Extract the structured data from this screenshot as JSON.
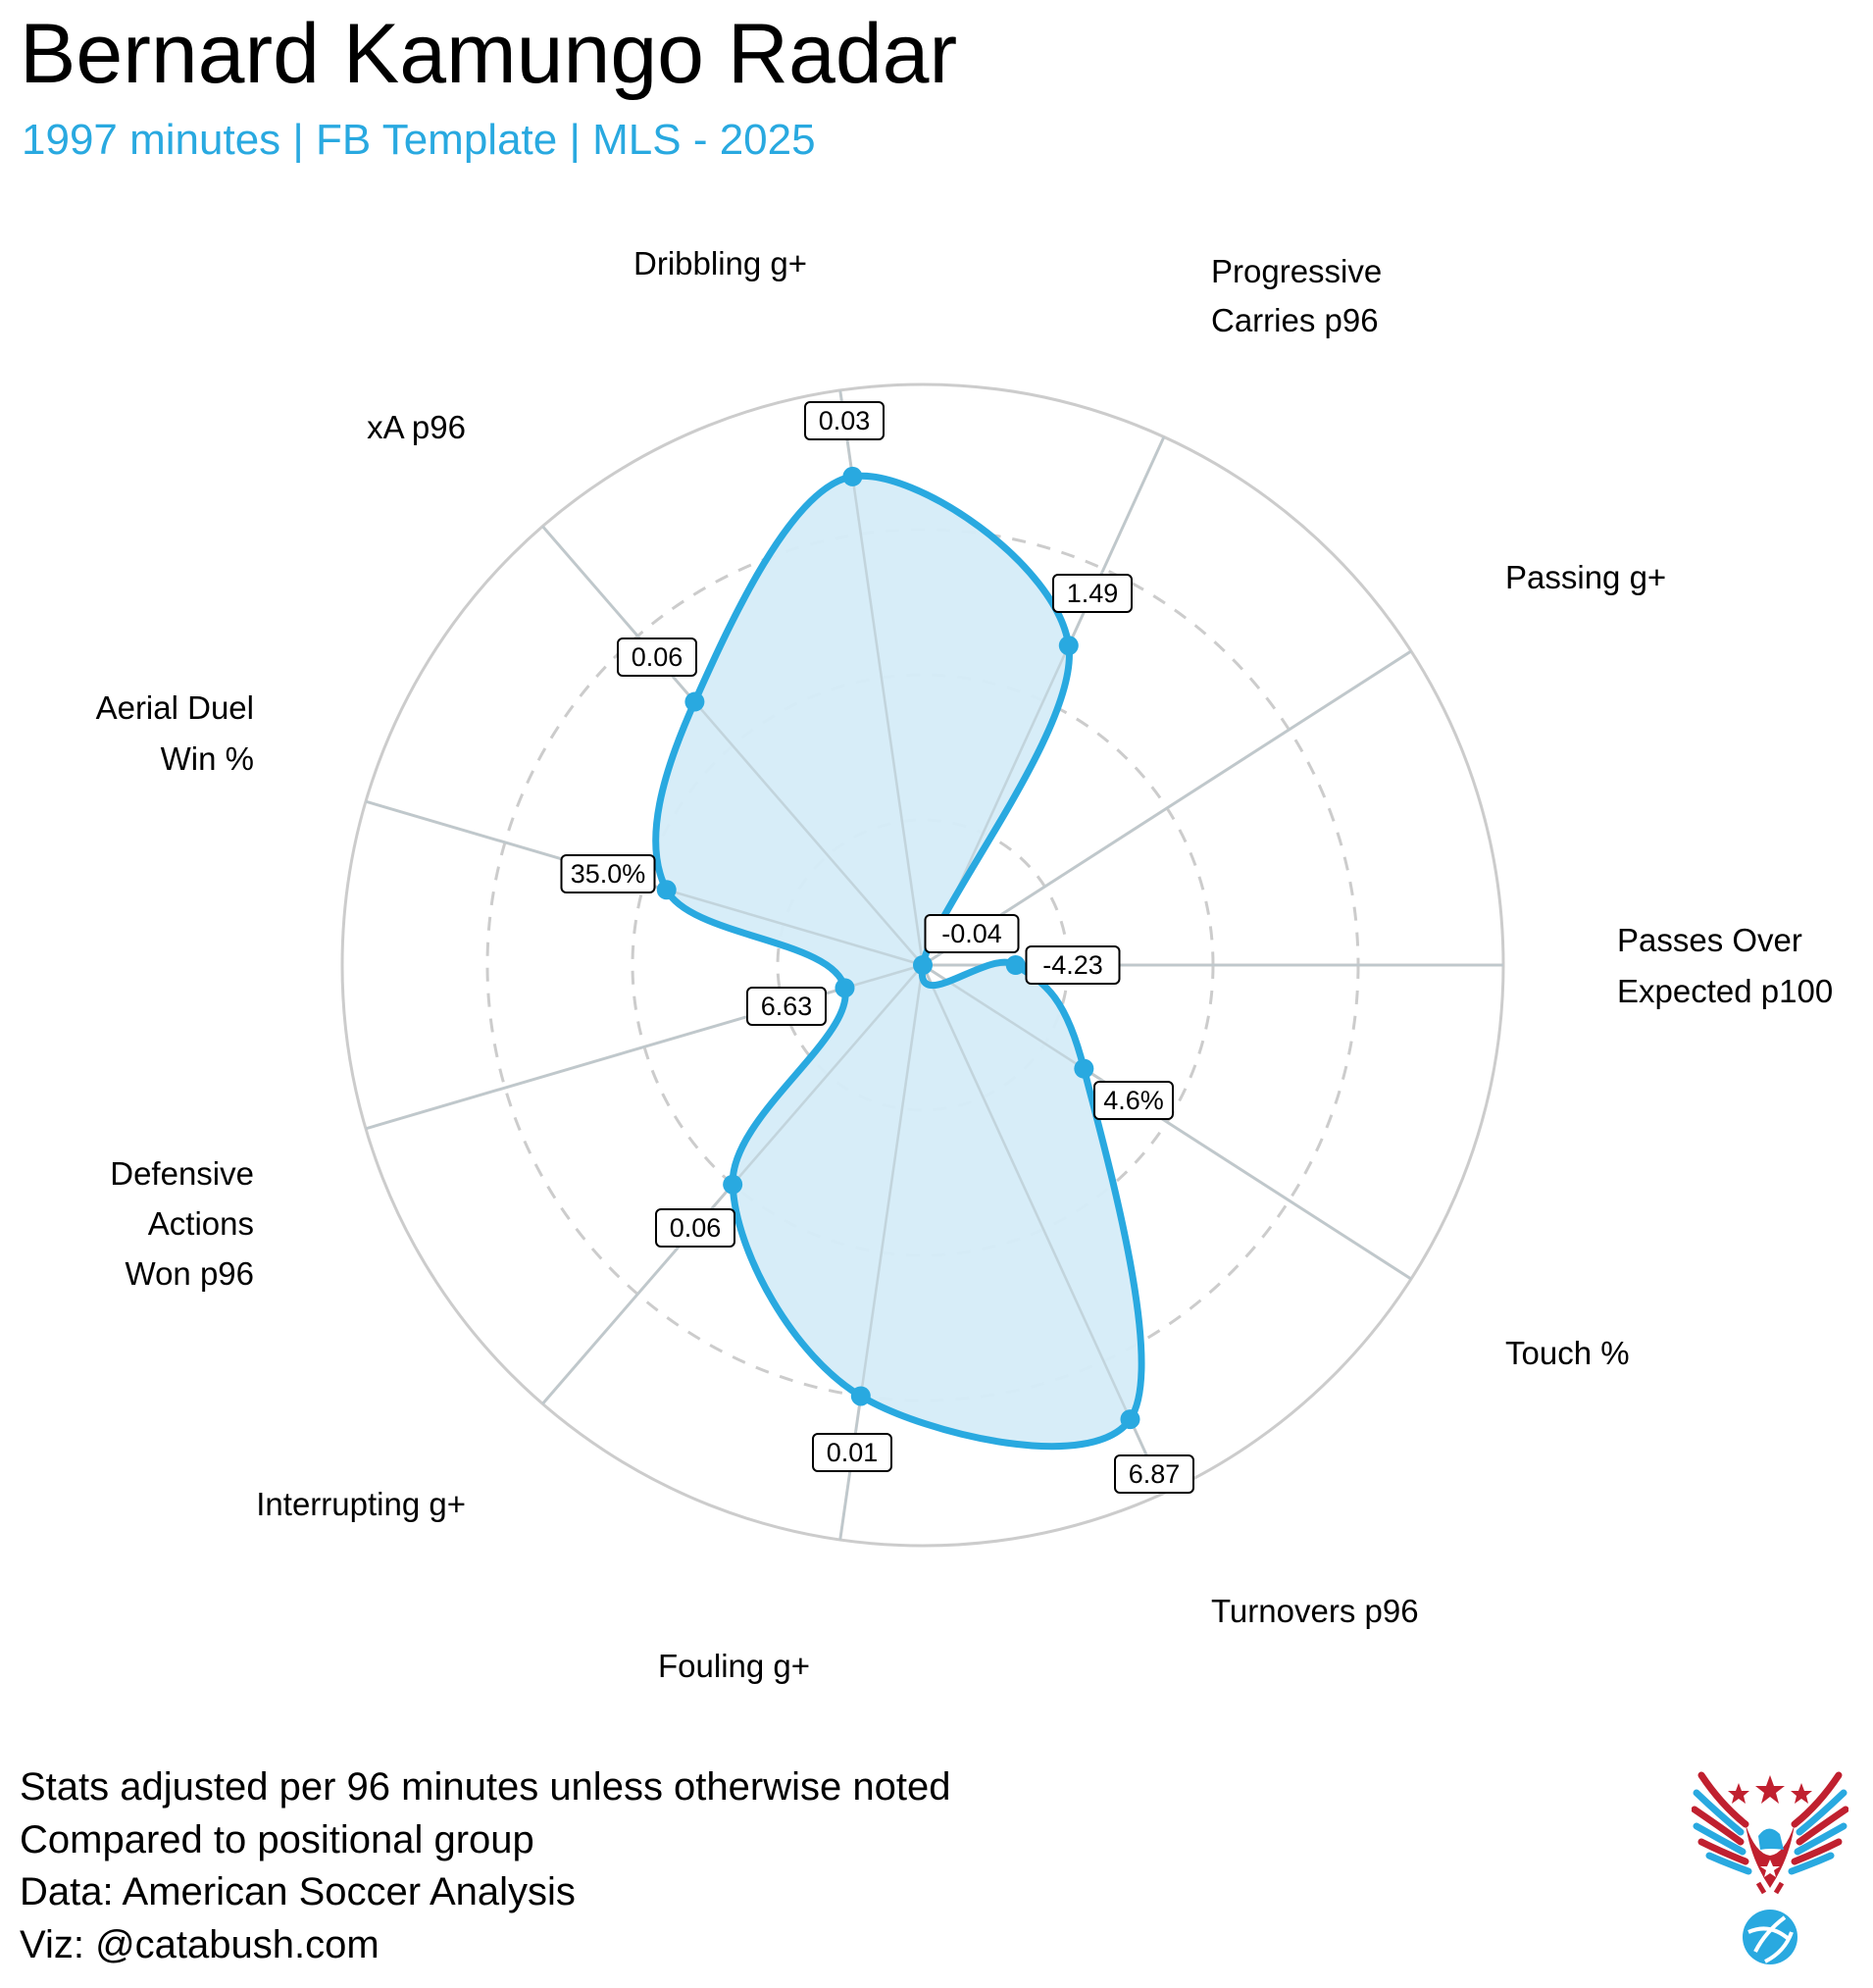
{
  "header": {
    "title": "Bernard Kamungo Radar",
    "subtitle": "1997 minutes | FB Template | MLS - 2025"
  },
  "footer": {
    "lines": [
      "Stats adjusted per 96 minutes unless otherwise noted",
      "Compared to positional group",
      "Data: American Soccer Analysis",
      "Viz: @catabush.com"
    ]
  },
  "logo": {
    "icon": "eagle-soccer-ball-logo"
  },
  "colors": {
    "accent": "#29A9E0",
    "fill": "#D5ECF8",
    "grid": "#CCCCCC",
    "logo_red": "#C0202F"
  },
  "chart_data": {
    "type": "radar",
    "title": "Bernard Kamungo Radar",
    "scale": "percentile (0-1)",
    "rlim": [
      0,
      1
    ],
    "grid_rings": [
      0.25,
      0.5,
      0.75,
      1.0
    ],
    "categories": [
      {
        "label": [
          "Dribbling g+"
        ],
        "value_label": "0.03",
        "percentile": 0.85
      },
      {
        "label": [
          "Progressive",
          "Carries p96"
        ],
        "value_label": "1.49",
        "percentile": 0.605
      },
      {
        "label": [
          "Passing g+"
        ],
        "value_label": "-0.04",
        "percentile": 0.0
      },
      {
        "label": [
          "Passes Over",
          "Expected p100"
        ],
        "value_label": "-4.23",
        "percentile": 0.16
      },
      {
        "label": [
          "Touch %"
        ],
        "value_label": "4.6%",
        "percentile": 0.33
      },
      {
        "label": [
          "Turnovers p96"
        ],
        "value_label": "6.87",
        "percentile": 0.86
      },
      {
        "label": [
          "Fouling g+"
        ],
        "value_label": "0.01",
        "percentile": 0.75
      },
      {
        "label": [
          "Interrupting g+"
        ],
        "value_label": "0.06",
        "percentile": 0.5
      },
      {
        "label": [
          "Defensive",
          "Actions",
          "Won p96"
        ],
        "value_label": "6.63",
        "percentile": 0.14
      },
      {
        "label": [
          "Aerial Duel",
          "Win %"
        ],
        "value_label": "35.0%",
        "percentile": 0.46
      },
      {
        "label": [
          "xA p96"
        ],
        "value_label": "0.06",
        "percentile": 0.6
      }
    ]
  }
}
